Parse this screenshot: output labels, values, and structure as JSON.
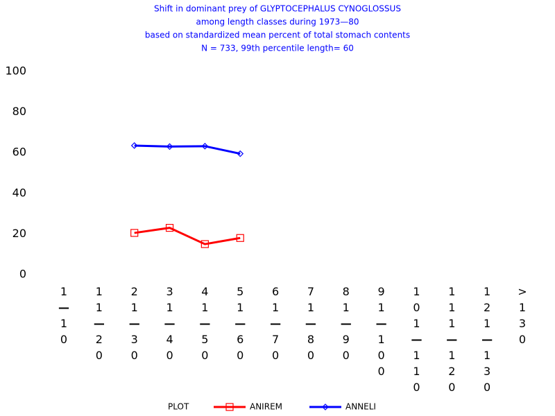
{
  "chart_data": {
    "type": "line",
    "title": [
      "Shift in dominant prey of GLYPTOCEPHALUS CYNOGLOSSUS",
      "among length classes during 1973—80",
      "based on standardized mean percent of  total stomach contents",
      "N =  733, 99th percentile  length= 60"
    ],
    "categories": [
      "1—10",
      "11—20",
      "21—30",
      "31—40",
      "41—50",
      "51—60",
      "61—70",
      "71—80",
      "81—90",
      "91—100",
      "101—110",
      "111—120",
      "121—130",
      ">130"
    ],
    "series": [
      {
        "name": "ANIREM",
        "color": "#ff0000",
        "marker": "square",
        "values": [
          null,
          null,
          20.5,
          23,
          15,
          18,
          null,
          null,
          null,
          null,
          null,
          null,
          null,
          null
        ]
      },
      {
        "name": "ANNELI",
        "color": "#0000ff",
        "marker": "diamond",
        "values": [
          null,
          null,
          63.5,
          63,
          63.2,
          59.5,
          null,
          null,
          null,
          null,
          null,
          null,
          null,
          null
        ]
      }
    ],
    "ylim": [
      0,
      100
    ],
    "yticks": [
      0,
      20,
      40,
      60,
      80,
      100
    ],
    "grid": false,
    "legend_title": "PLOT",
    "legend": "bottom"
  }
}
